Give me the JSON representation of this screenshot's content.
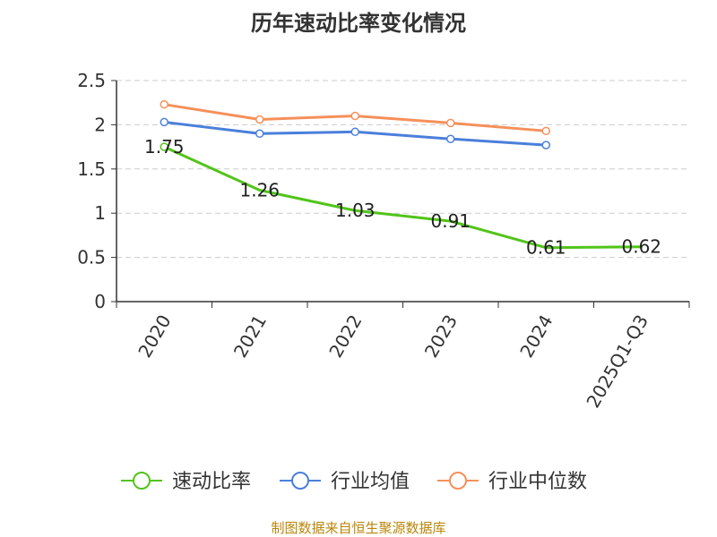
{
  "chart_data": {
    "type": "line",
    "title": "历年速动比率变化情况",
    "categories": [
      "2020",
      "2021",
      "2022",
      "2023",
      "2024",
      "2025Q1-Q3"
    ],
    "ylim": [
      0,
      2.5
    ],
    "yticks": [
      "0",
      "0.5",
      "1",
      "1.5",
      "2",
      "2.5"
    ],
    "grid": true,
    "legend_position": "bottom",
    "series": [
      {
        "name": "速动比率",
        "color": "#52c41a",
        "values": [
          1.75,
          1.26,
          1.03,
          0.91,
          0.61,
          0.62
        ],
        "labels": [
          "1.75",
          "1.26",
          "1.03",
          "0.91",
          "0.61",
          "0.62"
        ]
      },
      {
        "name": "行业均值",
        "color": "#4a7fdb",
        "values": [
          2.03,
          1.9,
          1.92,
          1.84,
          1.77,
          null
        ]
      },
      {
        "name": "行业中位数",
        "color": "#f5905a",
        "values": [
          2.23,
          2.06,
          2.1,
          2.02,
          1.93,
          null
        ]
      }
    ]
  },
  "source": "制图数据来自恒生聚源数据库"
}
